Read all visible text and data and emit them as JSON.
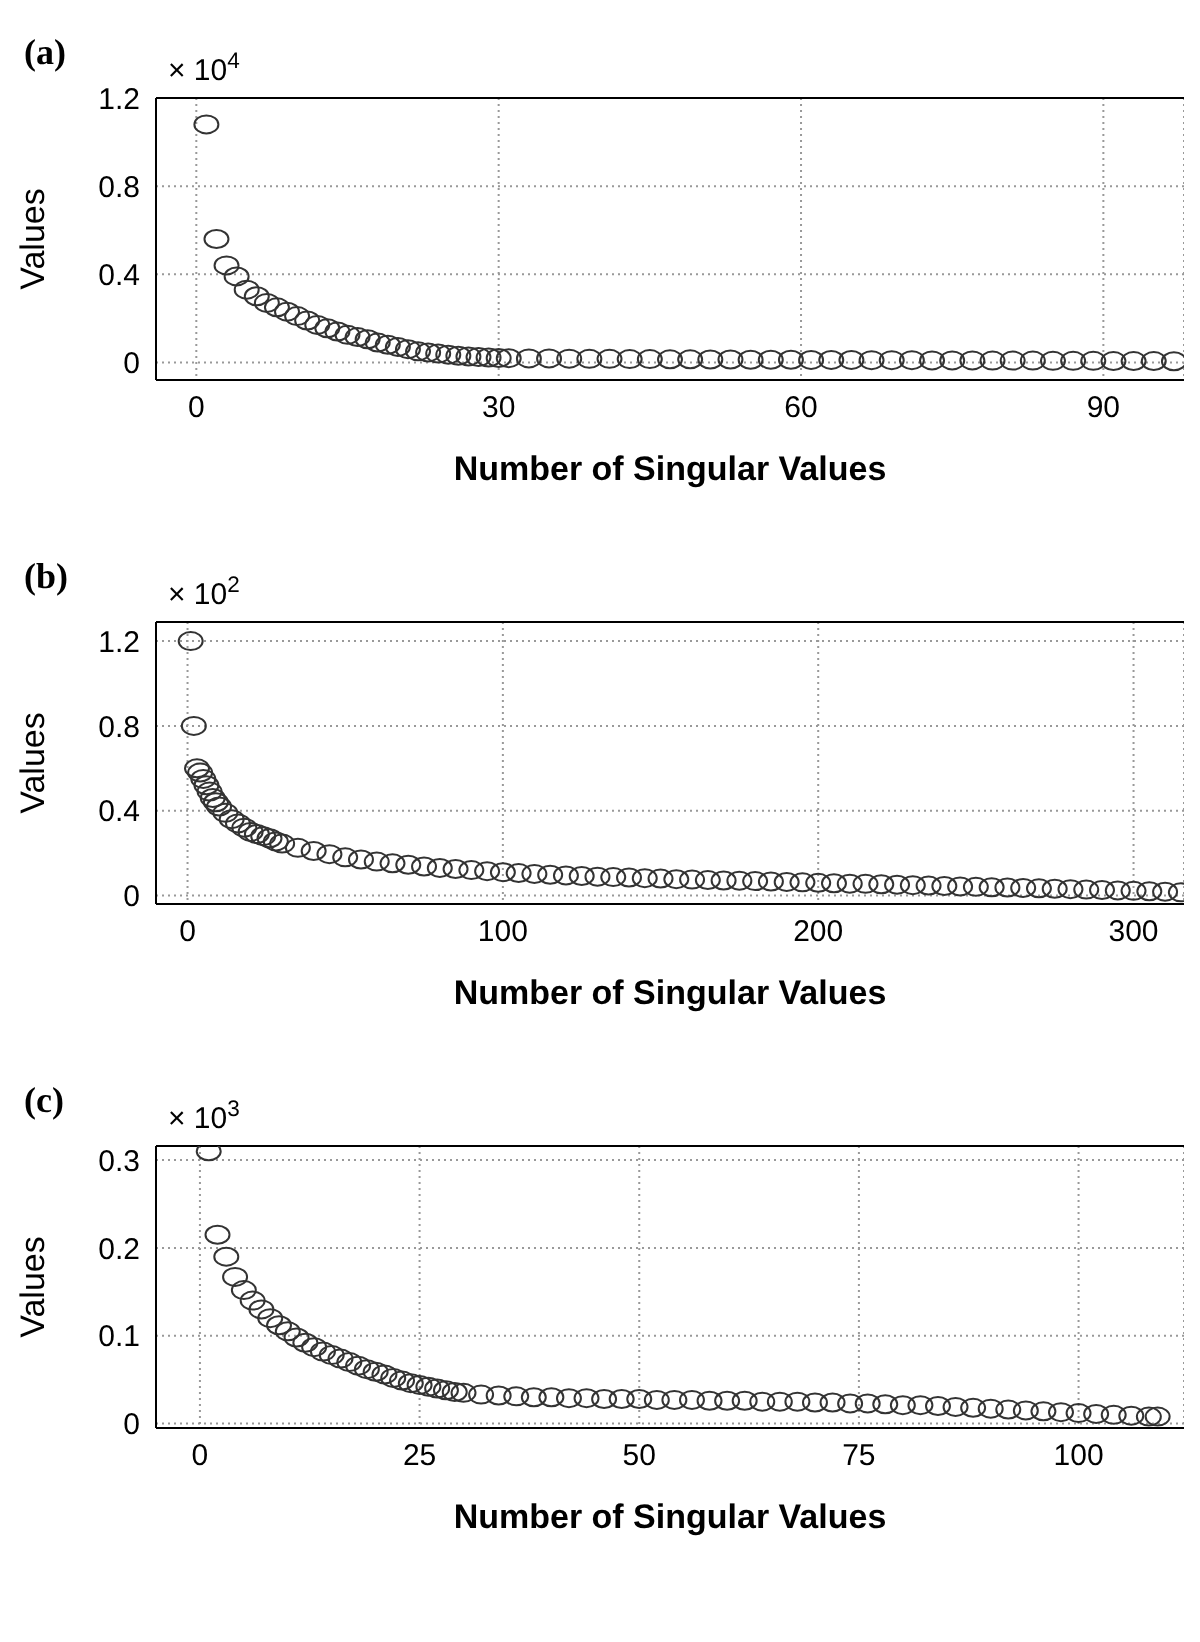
{
  "chart_data": [
    {
      "type": "scatter",
      "title": "(a)",
      "xlabel": "Number of Singular Values",
      "ylabel": "Values",
      "annotations": [
        "× 10$^{4}$"
      ],
      "marker": "circle",
      "grid": true,
      "xlim": [
        -4,
        98
      ],
      "xticks": [
        0,
        30,
        60,
        90
      ],
      "ylim": [
        -0.08,
        1.2
      ],
      "yticks": [
        0,
        0.4,
        0.8,
        1.2
      ],
      "series": [
        {
          "color": "#333333",
          "x": [
            1,
            2,
            3,
            4,
            5,
            6,
            7,
            8,
            9,
            10,
            11,
            12,
            13,
            14,
            15,
            16,
            17,
            18,
            19,
            20,
            21,
            22,
            23,
            24,
            25,
            26,
            27,
            28,
            29,
            30,
            31,
            33,
            35,
            37,
            39,
            41,
            43,
            45,
            47,
            49,
            51,
            53,
            55,
            57,
            59,
            61,
            63,
            65,
            67,
            69,
            71,
            73,
            75,
            77,
            79,
            81,
            83,
            85,
            87,
            89,
            91,
            93,
            95,
            97
          ],
          "values": [
            1.08,
            0.56,
            0.44,
            0.39,
            0.33,
            0.3,
            0.27,
            0.25,
            0.23,
            0.21,
            0.19,
            0.17,
            0.155,
            0.14,
            0.125,
            0.115,
            0.105,
            0.09,
            0.08,
            0.07,
            0.06,
            0.05,
            0.045,
            0.04,
            0.035,
            0.03,
            0.027,
            0.024,
            0.022,
            0.02,
            0.019,
            0.018,
            0.018,
            0.017,
            0.016,
            0.016,
            0.015,
            0.015,
            0.014,
            0.014,
            0.013,
            0.013,
            0.012,
            0.012,
            0.012,
            0.011,
            0.011,
            0.011,
            0.01,
            0.01,
            0.01,
            0.009,
            0.009,
            0.009,
            0.008,
            0.008,
            0.008,
            0.007,
            0.007,
            0.007,
            0.006,
            0.006,
            0.006,
            0.005
          ]
        }
      ]
    },
    {
      "type": "scatter",
      "title": "(b)",
      "xlabel": "Number of Singular Values",
      "ylabel": "Values",
      "annotations": [
        "× 10$^{2}$"
      ],
      "marker": "circle",
      "grid": true,
      "xlim": [
        -10,
        316
      ],
      "xticks": [
        0,
        100,
        200,
        300
      ],
      "ylim": [
        -0.04,
        1.29
      ],
      "yticks": [
        0,
        0.4,
        0.8,
        1.2
      ],
      "series": [
        {
          "color": "#333333",
          "x": [
            1,
            2,
            3,
            4,
            5,
            6,
            7,
            8,
            9,
            10,
            12,
            14,
            16,
            18,
            20,
            22,
            24,
            26,
            28,
            30,
            35,
            40,
            45,
            50,
            55,
            60,
            65,
            70,
            75,
            80,
            85,
            90,
            95,
            100,
            105,
            110,
            115,
            120,
            125,
            130,
            135,
            140,
            145,
            150,
            155,
            160,
            165,
            170,
            175,
            180,
            185,
            190,
            195,
            200,
            205,
            210,
            215,
            220,
            225,
            230,
            235,
            240,
            245,
            250,
            255,
            260,
            265,
            270,
            275,
            280,
            285,
            290,
            295,
            300,
            305,
            310,
            315
          ],
          "values": [
            1.2,
            0.8,
            0.6,
            0.58,
            0.55,
            0.52,
            0.49,
            0.46,
            0.44,
            0.42,
            0.39,
            0.36,
            0.34,
            0.32,
            0.3,
            0.29,
            0.28,
            0.27,
            0.255,
            0.245,
            0.225,
            0.21,
            0.195,
            0.18,
            0.17,
            0.16,
            0.152,
            0.145,
            0.137,
            0.13,
            0.125,
            0.12,
            0.115,
            0.11,
            0.106,
            0.102,
            0.098,
            0.095,
            0.092,
            0.089,
            0.087,
            0.085,
            0.082,
            0.08,
            0.077,
            0.075,
            0.073,
            0.071,
            0.07,
            0.068,
            0.066,
            0.064,
            0.062,
            0.06,
            0.058,
            0.056,
            0.055,
            0.053,
            0.051,
            0.049,
            0.047,
            0.045,
            0.043,
            0.041,
            0.039,
            0.038,
            0.036,
            0.034,
            0.032,
            0.03,
            0.028,
            0.026,
            0.024,
            0.022,
            0.02,
            0.018,
            0.015
          ]
        }
      ]
    },
    {
      "type": "scatter",
      "title": "(c)",
      "xlabel": "Number of Singular Values",
      "ylabel": "Values",
      "annotations": [
        "× 10$^{3}$"
      ],
      "marker": "circle",
      "grid": true,
      "xlim": [
        -5,
        112
      ],
      "xticks": [
        0,
        25,
        50,
        75,
        100
      ],
      "ylim": [
        -0.005,
        0.316
      ],
      "yticks": [
        0,
        0.1,
        0.2,
        0.3
      ],
      "series": [
        {
          "color": "#333333",
          "x": [
            1,
            2,
            3,
            4,
            5,
            6,
            7,
            8,
            9,
            10,
            11,
            12,
            13,
            14,
            15,
            16,
            17,
            18,
            19,
            20,
            21,
            22,
            23,
            24,
            25,
            26,
            27,
            28,
            29,
            30,
            32,
            34,
            36,
            38,
            40,
            42,
            44,
            46,
            48,
            50,
            52,
            54,
            56,
            58,
            60,
            62,
            64,
            66,
            68,
            70,
            72,
            74,
            76,
            78,
            80,
            82,
            84,
            86,
            88,
            90,
            92,
            94,
            96,
            98,
            100,
            102,
            104,
            106,
            108,
            109
          ],
          "values": [
            0.31,
            0.215,
            0.19,
            0.167,
            0.152,
            0.14,
            0.13,
            0.12,
            0.112,
            0.105,
            0.098,
            0.092,
            0.087,
            0.082,
            0.078,
            0.074,
            0.07,
            0.066,
            0.062,
            0.059,
            0.056,
            0.052,
            0.049,
            0.046,
            0.044,
            0.042,
            0.04,
            0.038,
            0.036,
            0.035,
            0.033,
            0.032,
            0.031,
            0.03,
            0.03,
            0.029,
            0.029,
            0.028,
            0.028,
            0.028,
            0.027,
            0.027,
            0.027,
            0.026,
            0.026,
            0.026,
            0.025,
            0.025,
            0.025,
            0.024,
            0.024,
            0.023,
            0.023,
            0.022,
            0.021,
            0.021,
            0.02,
            0.019,
            0.018,
            0.017,
            0.016,
            0.015,
            0.014,
            0.013,
            0.012,
            0.011,
            0.01,
            0.009,
            0.008,
            0.008
          ]
        }
      ]
    }
  ]
}
